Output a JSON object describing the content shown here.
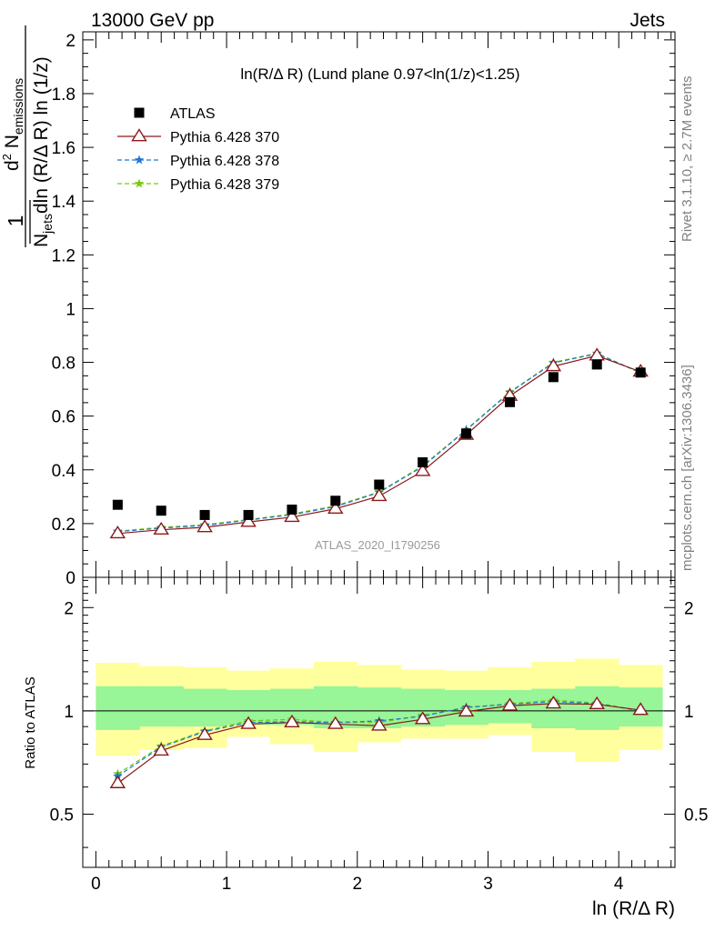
{
  "header": {
    "left": "13000 GeV pp",
    "right": "Jets"
  },
  "side_labels": {
    "rivet": "Rivet 3.1.10, ≥ 2.7M events",
    "mcplots": "mcplots.cern.ch [arXiv:1306.3436]"
  },
  "watermark": "ATLAS_2020_I1790256",
  "chart_data": [
    {
      "type": "scatter",
      "title": "ln(R/Δ R) (Lund plane 0.97<ln(1/z)<1.25)",
      "xlabel": "ln (R/Δ R)",
      "ylabel": "1/N_jets dN_emissions / dln(R/Δ R) ln(1/z)",
      "xlim": [
        -0.1,
        4.43
      ],
      "ylim": [
        0,
        2.03
      ],
      "yticks": [
        "0",
        "0.2",
        "0.4",
        "0.6",
        "0.8",
        "1",
        "1.2",
        "1.4",
        "1.6",
        "1.8",
        "2"
      ],
      "legend_position": "top-left",
      "x": [
        0.167,
        0.5,
        0.833,
        1.167,
        1.5,
        1.833,
        2.167,
        2.5,
        2.833,
        3.167,
        3.5,
        3.833,
        4.167
      ],
      "series": [
        {
          "name": "ATLAS",
          "color": "#000000",
          "marker": "square",
          "values": [
            0.27,
            0.248,
            0.232,
            0.232,
            0.252,
            0.285,
            0.345,
            0.428,
            0.535,
            0.652,
            0.745,
            0.792,
            0.762
          ]
        },
        {
          "name": "Pythia 6.428 370",
          "color": "#8b1a1a",
          "marker": "triangle",
          "dash": "",
          "values": [
            0.163,
            0.177,
            0.186,
            0.206,
            0.224,
            0.255,
            0.302,
            0.395,
            0.53,
            0.675,
            0.785,
            0.825,
            0.765
          ]
        },
        {
          "name": "Pythia 6.428 378",
          "color": "#1f77d4",
          "marker": "star",
          "dash": "5,3",
          "values": [
            0.17,
            0.183,
            0.193,
            0.213,
            0.233,
            0.263,
            0.316,
            0.412,
            0.548,
            0.688,
            0.798,
            0.832,
            0.762
          ]
        },
        {
          "name": "Pythia 6.428 379",
          "color": "#7ac70c",
          "marker": "star",
          "dash": "5,3",
          "values": [
            0.172,
            0.186,
            0.196,
            0.215,
            0.236,
            0.266,
            0.318,
            0.415,
            0.55,
            0.69,
            0.8,
            0.834,
            0.76
          ]
        }
      ]
    },
    {
      "type": "line",
      "ylabel": "Ratio to ATLAS",
      "xlim": [
        -0.1,
        4.43
      ],
      "ylim": [
        0.35,
        2.45
      ],
      "yticks": [
        "0.5",
        "1",
        "2"
      ],
      "xticks": [
        "0",
        "1",
        "2",
        "3",
        "4"
      ],
      "reference_line": 1,
      "x_edges": [
        0,
        0.333,
        0.667,
        1.0,
        1.333,
        1.667,
        2.0,
        2.333,
        2.667,
        3.0,
        3.333,
        3.667,
        4.0,
        4.333
      ],
      "band_inner": {
        "color": "#98f598",
        "lo": [
          0.88,
          0.9,
          0.9,
          0.91,
          0.91,
          0.89,
          0.89,
          0.9,
          0.91,
          0.92,
          0.89,
          0.88,
          0.9
        ],
        "hi": [
          1.18,
          1.18,
          1.16,
          1.15,
          1.16,
          1.18,
          1.17,
          1.16,
          1.15,
          1.15,
          1.16,
          1.18,
          1.17
        ]
      },
      "band_outer": {
        "color": "#ffff9d",
        "lo": [
          0.74,
          0.77,
          0.78,
          0.84,
          0.8,
          0.76,
          0.81,
          0.83,
          0.83,
          0.85,
          0.76,
          0.71,
          0.77
        ],
        "hi": [
          1.38,
          1.35,
          1.34,
          1.31,
          1.33,
          1.39,
          1.36,
          1.32,
          1.31,
          1.34,
          1.39,
          1.42,
          1.36
        ]
      },
      "x": [
        0.167,
        0.5,
        0.833,
        1.167,
        1.5,
        1.833,
        2.167,
        2.5,
        2.833,
        3.167,
        3.5,
        3.833,
        4.167
      ],
      "series": [
        {
          "name": "Pythia 6.428 370",
          "color": "#8b1a1a",
          "marker": "triangle",
          "dash": "",
          "values": [
            0.615,
            0.765,
            0.85,
            0.915,
            0.925,
            0.915,
            0.905,
            0.945,
            0.995,
            1.035,
            1.05,
            1.045,
            1.005
          ]
        },
        {
          "name": "Pythia 6.428 378",
          "color": "#1f77d4",
          "marker": "star",
          "dash": "5,3",
          "values": [
            0.645,
            0.785,
            0.87,
            0.925,
            0.93,
            0.925,
            0.935,
            0.965,
            1.025,
            1.045,
            1.065,
            1.05,
            1.0
          ]
        },
        {
          "name": "Pythia 6.428 379",
          "color": "#7ac70c",
          "marker": "star",
          "dash": "5,3",
          "values": [
            0.655,
            0.79,
            0.875,
            0.935,
            0.945,
            0.925,
            0.925,
            0.97,
            1.02,
            1.05,
            1.075,
            1.055,
            1.0
          ]
        }
      ]
    }
  ]
}
